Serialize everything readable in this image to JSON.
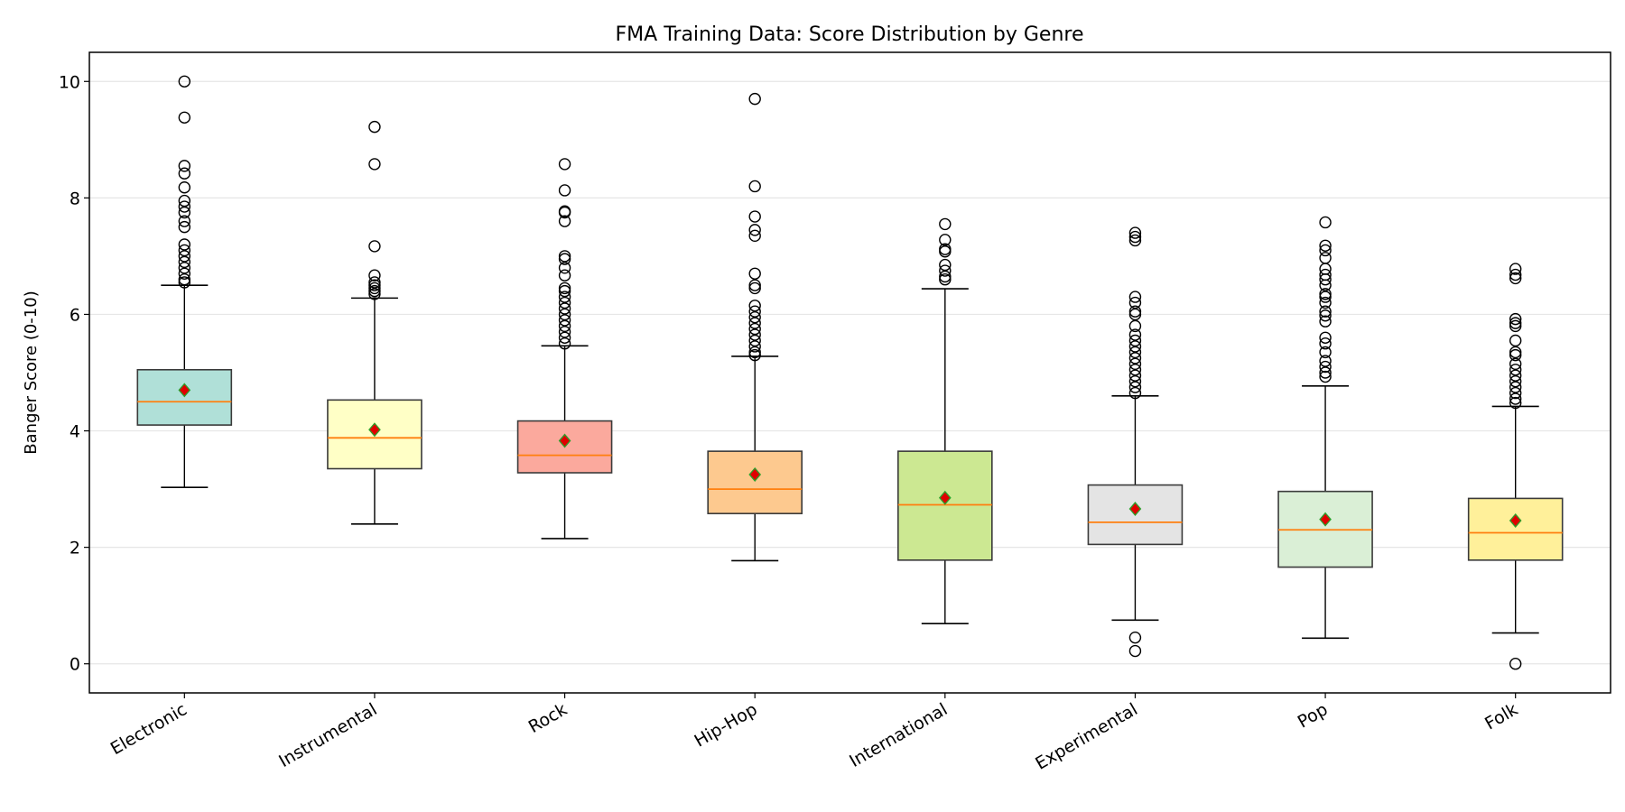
{
  "chart_data": {
    "type": "box",
    "title": "FMA Training Data: Score Distribution by Genre",
    "xlabel": "",
    "ylabel": "Banger Score (0-10)",
    "ylim": [
      -0.5,
      10.5
    ],
    "yticks": [
      0,
      2,
      4,
      6,
      8,
      10
    ],
    "grid": "y",
    "categories": [
      "Electronic",
      "Instrumental",
      "Rock",
      "Hip-Hop",
      "International",
      "Experimental",
      "Pop",
      "Folk"
    ],
    "colors": [
      "#b0e0d8",
      "#ffffc6",
      "#fba99d",
      "#fdc98f",
      "#cce892",
      "#e4e4e4",
      "#daefd6",
      "#fff09a"
    ],
    "median_color": "#ff7f0e",
    "mean_marker_color": "#e00000",
    "mean_marker_edge": "#2ca02c",
    "boxes": [
      {
        "whisker_low": 3.03,
        "q1": 4.1,
        "median": 4.5,
        "q3": 5.05,
        "whisker_high": 6.5,
        "mean": 4.7,
        "outliers": [
          10.0,
          9.38,
          8.55,
          8.42,
          8.18,
          7.95,
          7.85,
          7.75,
          7.6,
          7.5,
          7.2,
          7.1,
          7.0,
          6.9,
          6.8,
          6.7,
          6.6,
          6.55
        ]
      },
      {
        "whisker_low": 2.4,
        "q1": 3.35,
        "median": 3.88,
        "q3": 4.53,
        "whisker_high": 6.28,
        "mean": 4.02,
        "outliers": [
          9.22,
          8.58,
          7.17,
          6.67,
          6.55,
          6.5,
          6.45,
          6.4,
          6.35
        ]
      },
      {
        "whisker_low": 2.15,
        "q1": 3.28,
        "median": 3.58,
        "q3": 4.17,
        "whisker_high": 5.46,
        "mean": 3.83,
        "outliers": [
          8.58,
          8.13,
          7.77,
          7.75,
          7.6,
          7.0,
          6.95,
          6.8,
          6.67,
          6.45,
          6.4,
          6.3,
          6.2,
          6.1,
          6.0,
          5.9,
          5.8,
          5.7,
          5.6,
          5.5
        ]
      },
      {
        "whisker_low": 1.77,
        "q1": 2.58,
        "median": 3.0,
        "q3": 3.65,
        "whisker_high": 5.28,
        "mean": 3.25,
        "outliers": [
          9.7,
          8.2,
          7.68,
          7.45,
          7.35,
          6.7,
          6.5,
          6.45,
          6.15,
          6.05,
          5.95,
          5.85,
          5.75,
          5.65,
          5.55,
          5.45,
          5.35,
          5.3
        ]
      },
      {
        "whisker_low": 0.69,
        "q1": 1.78,
        "median": 2.73,
        "q3": 3.65,
        "whisker_high": 6.44,
        "mean": 2.85,
        "outliers": [
          7.55,
          7.28,
          7.12,
          7.08,
          6.85,
          6.75,
          6.65,
          6.6
        ]
      },
      {
        "whisker_low": 0.75,
        "q1": 2.05,
        "median": 2.43,
        "q3": 3.07,
        "whisker_high": 4.6,
        "mean": 2.66,
        "outliers": [
          7.4,
          7.33,
          7.27,
          6.3,
          6.2,
          6.05,
          6.0,
          5.8,
          5.65,
          5.55,
          5.45,
          5.35,
          5.25,
          5.15,
          5.05,
          4.95,
          4.85,
          4.75,
          4.65,
          0.45,
          0.22
        ]
      },
      {
        "whisker_low": 0.44,
        "q1": 1.66,
        "median": 2.3,
        "q3": 2.96,
        "whisker_high": 4.77,
        "mean": 2.48,
        "outliers": [
          7.58,
          7.18,
          7.1,
          6.97,
          6.78,
          6.68,
          6.6,
          6.5,
          6.35,
          6.3,
          6.2,
          6.05,
          5.98,
          5.88,
          5.6,
          5.5,
          5.35,
          5.2,
          5.1,
          5.0,
          4.93
        ]
      },
      {
        "whisker_low": 0.53,
        "q1": 1.78,
        "median": 2.25,
        "q3": 2.84,
        "whisker_high": 4.42,
        "mean": 2.46,
        "outliers": [
          6.78,
          6.68,
          6.62,
          5.92,
          5.85,
          5.8,
          5.55,
          5.35,
          5.3,
          5.15,
          5.05,
          4.95,
          4.85,
          4.75,
          4.65,
          4.55,
          4.48,
          0.0
        ]
      }
    ]
  }
}
